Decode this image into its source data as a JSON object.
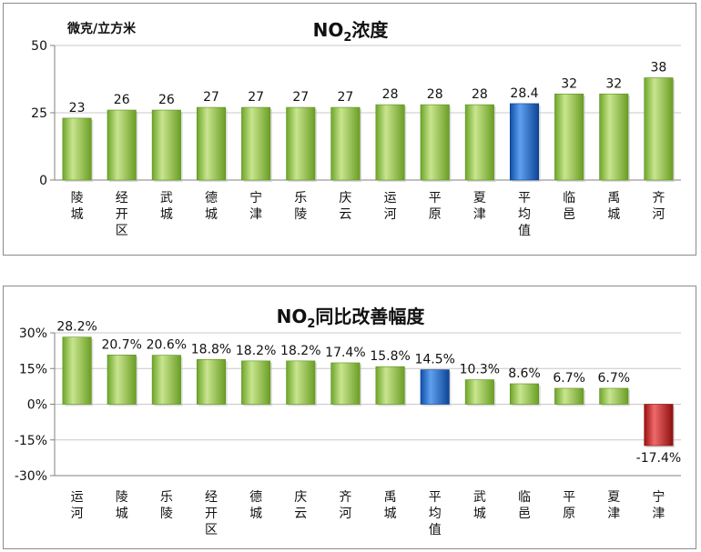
{
  "chart_data": [
    {
      "type": "bar",
      "title": "NO2浓度",
      "ylabel": "微克/立方米",
      "categories": [
        "陵城",
        "经开区",
        "武城",
        "德城",
        "宁津",
        "乐陵",
        "庆云",
        "运河",
        "平原",
        "夏津",
        "平均值",
        "临邑",
        "禹城",
        "齐河"
      ],
      "values": [
        23,
        26,
        26,
        27,
        27,
        27,
        27,
        28,
        28,
        28,
        28.4,
        32,
        32,
        38
      ],
      "data_labels": [
        "23",
        "26",
        "26",
        "27",
        "27",
        "27",
        "27",
        "28",
        "28",
        "28",
        "28.4",
        "32",
        "32",
        "38"
      ],
      "highlight_index": 10,
      "ylim": [
        0,
        50
      ],
      "yticks": [
        "0",
        "25",
        "50"
      ],
      "grid": true,
      "colors": {
        "bar": "#8cc33c",
        "bar_light": "#c9e58f",
        "bar_dark": "#5f8f1e",
        "highlight": "#1f6fd1",
        "highlight_light": "#6aa8f0",
        "highlight_dark": "#0d3f8c"
      }
    },
    {
      "type": "bar",
      "title": "NO2同比改善幅度",
      "categories": [
        "运河",
        "陵城",
        "乐陵",
        "经开区",
        "德城",
        "庆云",
        "齐河",
        "禹城",
        "平均值",
        "武城",
        "临邑",
        "平原",
        "夏津",
        "宁津"
      ],
      "values": [
        28.2,
        20.7,
        20.6,
        18.8,
        18.2,
        18.2,
        17.4,
        15.8,
        14.5,
        10.3,
        8.6,
        6.7,
        6.7,
        -17.4
      ],
      "data_labels": [
        "28.2%",
        "20.7%",
        "20.6%",
        "18.8%",
        "18.2%",
        "18.2%",
        "17.4%",
        "15.8%",
        "14.5%",
        "10.3%",
        "8.6%",
        "6.7%",
        "6.7%",
        "-17.4%"
      ],
      "highlight_index": 8,
      "negative_index": 13,
      "ylim": [
        -30,
        30
      ],
      "yticks": [
        "-30%",
        "-15%",
        "0%",
        "15%",
        "30%"
      ],
      "grid": true,
      "colors": {
        "bar": "#8cc33c",
        "bar_light": "#c9e58f",
        "bar_dark": "#5f8f1e",
        "highlight": "#1f6fd1",
        "highlight_light": "#6aa8f0",
        "highlight_dark": "#0d3f8c",
        "negative": "#c81e1e",
        "negative_light": "#f07070",
        "negative_dark": "#8a0f0f"
      }
    }
  ]
}
